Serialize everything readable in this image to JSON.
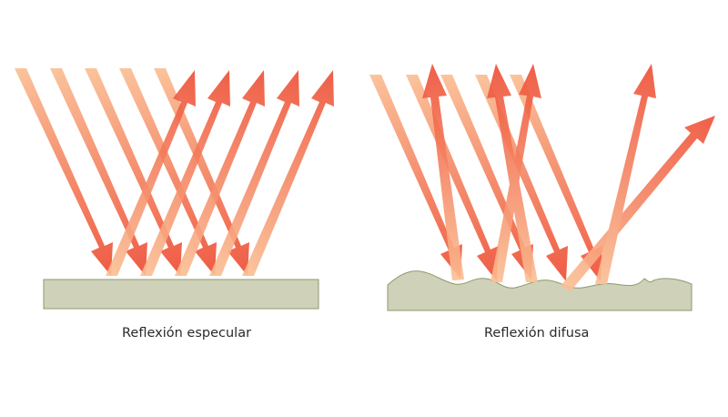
{
  "panels": {
    "specular": {
      "caption": "Reflexión especular"
    },
    "diffuse": {
      "caption": "Reflexión difusa"
    }
  },
  "colors": {
    "ray_light": "#fbbf94",
    "ray_dark": "#ee4e35",
    "surface_fill": "#cfd1b8",
    "surface_stroke": "#8c9a6e",
    "text": "#2a2a2a"
  }
}
